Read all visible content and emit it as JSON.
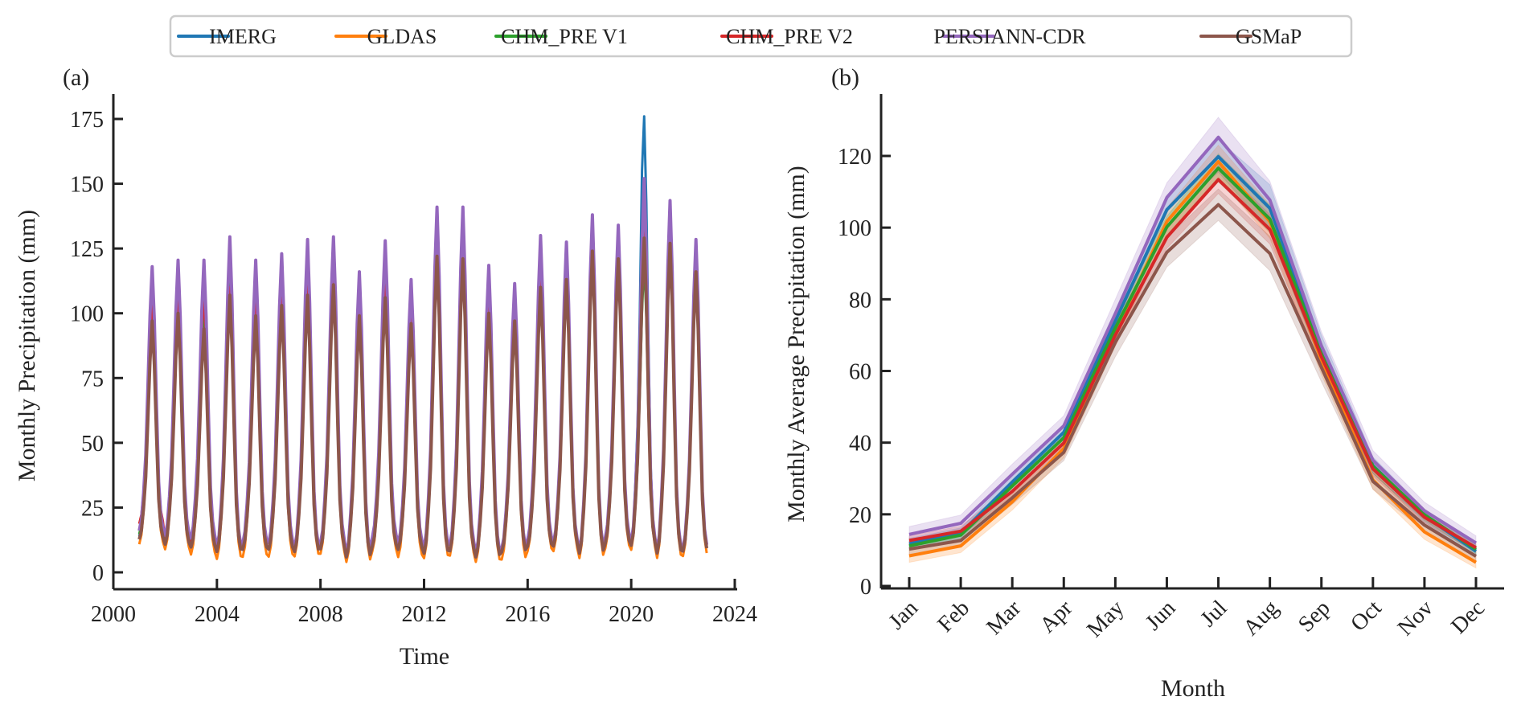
{
  "legend": {
    "entries": [
      {
        "label": "IMERG",
        "color": "#1f77b4"
      },
      {
        "label": "GLDAS",
        "color": "#ff7f0e"
      },
      {
        "label": "CHM_PRE V1",
        "color": "#2ca02c"
      },
      {
        "label": "CHM_PRE V2",
        "color": "#d62728"
      },
      {
        "label": "PERSIANN-CDR",
        "color": "#9467bd"
      },
      {
        "label": "GSMaP",
        "color": "#8c564b"
      }
    ],
    "placement": "top-center"
  },
  "chart_data": [
    {
      "panel_label": "(a)",
      "type": "line",
      "title": "",
      "xlabel": "Time",
      "ylabel": "Monthly Precipitation (mm)",
      "xlim": [
        2000,
        2024
      ],
      "ylim": [
        -5,
        185
      ],
      "xticks": [
        2000,
        2004,
        2008,
        2012,
        2016,
        2020,
        2024
      ],
      "xtick_labels": [
        "2000",
        "2004",
        "2008",
        "2012",
        "2016",
        "2020",
        "2024"
      ],
      "yticks": [
        0,
        25,
        50,
        75,
        100,
        125,
        150,
        175
      ],
      "ytick_labels": [
        "0",
        "25",
        "50",
        "75",
        "100",
        "125",
        "150",
        "175"
      ],
      "grid": false,
      "note": "Monthly series 2001-2022; values summarized per year as peak (summer maximum) and trough (winter minimum)",
      "years": [
        2001,
        2002,
        2003,
        2004,
        2005,
        2006,
        2007,
        2008,
        2009,
        2010,
        2011,
        2012,
        2013,
        2014,
        2015,
        2016,
        2017,
        2018,
        2019,
        2020,
        2021,
        2022
      ],
      "series": [
        {
          "name": "IMERG",
          "color": "#1f77b4",
          "annual_peak": [
            108,
            110,
            108,
            118,
            110,
            113,
            118,
            120,
            107,
            117,
            104,
            131,
            131,
            109,
            103,
            120,
            120,
            131,
            128,
            176,
            135,
            122
          ],
          "annual_trough": [
            12,
            9,
            8,
            6,
            7,
            7,
            6,
            7,
            4,
            8,
            7,
            5,
            6,
            4,
            6,
            8,
            8,
            5,
            9,
            8,
            5,
            6
          ]
        },
        {
          "name": "GLDAS",
          "color": "#ff7f0e",
          "annual_peak": [
            100,
            103,
            100,
            112,
            104,
            107,
            112,
            114,
            102,
            111,
            99,
            126,
            126,
            104,
            99,
            116,
            115,
            128,
            124,
            140,
            131,
            119
          ],
          "annual_trough": [
            9,
            7,
            5,
            3,
            4,
            4,
            4,
            5,
            2,
            6,
            4,
            3,
            4,
            2,
            3,
            6,
            6,
            3,
            7,
            6,
            3,
            4
          ]
        },
        {
          "name": "CHM_PRE V1",
          "color": "#2ca02c",
          "annual_peak": [
            102,
            104,
            102,
            112,
            104,
            106,
            111,
            114,
            102,
            110,
            99,
            125,
            125,
            104,
            99,
            114,
            116,
            127,
            123,
            121,
            130,
            119
          ],
          "annual_trough": [
            13,
            10,
            9,
            6,
            7,
            7,
            6,
            8,
            4,
            9,
            7,
            5,
            6,
            4,
            6,
            9,
            8,
            5,
            10,
            8,
            5,
            6
          ]
        },
        {
          "name": "CHM_PRE V2",
          "color": "#d62728",
          "annual_peak": [
            104,
            108,
            109,
            110,
            106,
            107,
            112,
            113,
            103,
            112,
            101,
            124,
            124,
            106,
            98,
            116,
            115,
            126,
            124,
            132,
            130,
            120
          ],
          "annual_trough": [
            17,
            10,
            9,
            6,
            7,
            7,
            6,
            8,
            4,
            9,
            7,
            6,
            6,
            4,
            6,
            9,
            8,
            5,
            10,
            8,
            5,
            6
          ]
        },
        {
          "name": "PERSIANN-CDR",
          "color": "#9467bd",
          "annual_peak": [
            118,
            120.5,
            120.5,
            129.5,
            120.5,
            123,
            128.5,
            129.5,
            116,
            128,
            113,
            141,
            141,
            118.5,
            111.5,
            130,
            127.5,
            138,
            134,
            152,
            143.5,
            128.5
          ],
          "annual_trough": [
            14,
            12,
            11,
            7,
            9,
            9,
            7,
            9,
            5,
            11,
            9,
            7,
            8,
            5,
            7,
            10,
            9,
            6,
            11,
            9,
            6,
            7
          ]
        },
        {
          "name": "GSMaP",
          "color": "#8c564b",
          "annual_peak": [
            97,
            100,
            94,
            107,
            99,
            103,
            107,
            111,
            99,
            106,
            96,
            122,
            121,
            100,
            97,
            110,
            113,
            124,
            121,
            129,
            127,
            116
          ],
          "annual_trough": [
            11,
            9,
            8,
            6,
            7,
            7,
            6,
            7,
            4,
            8,
            7,
            5,
            6,
            4,
            6,
            8,
            8,
            5,
            9,
            8,
            5,
            6
          ]
        }
      ]
    },
    {
      "panel_label": "(b)",
      "type": "line",
      "title": "",
      "xlabel": "Month",
      "ylabel": "Monthly Average Precipitation (mm)",
      "categories": [
        "Jan",
        "Feb",
        "Mar",
        "Apr",
        "May",
        "Jun",
        "Jul",
        "Aug",
        "Sep",
        "Oct",
        "Nov",
        "Dec"
      ],
      "ylim": [
        -1,
        136
      ],
      "yticks": [
        0,
        20,
        40,
        60,
        80,
        100,
        120
      ],
      "ytick_labels": [
        "0",
        "20",
        "40",
        "60",
        "80",
        "100",
        "120"
      ],
      "grid": false,
      "shaded_band": "uncertainty band around each series",
      "series": [
        {
          "name": "IMERG",
          "color": "#1f77b4",
          "values": [
            11.8,
            14.7,
            29.0,
            42.9,
            74,
            105.0,
            119.8,
            105.4,
            66,
            33.6,
            19.6,
            9.7
          ],
          "band": [
            [
              10.5,
              13.3
            ],
            [
              13.3,
              16.2
            ],
            [
              27.3,
              30.8
            ],
            [
              41.0,
              45.0
            ],
            [
              71,
              77
            ],
            [
              102.0,
              109.0
            ],
            [
              115.5,
              124.5
            ],
            [
              99.0,
              112.0
            ],
            [
              62,
              70
            ],
            [
              31.5,
              36.0
            ],
            [
              17.8,
              21.4
            ],
            [
              8.3,
              11.2
            ]
          ]
        },
        {
          "name": "GLDAS",
          "color": "#ff7f0e",
          "values": [
            8.4,
            11.2,
            23.5,
            38.4,
            71,
            101.7,
            118.4,
            101.7,
            63,
            29.6,
            15.1,
            6.6
          ],
          "band": [
            [
              6.6,
              10.2
            ],
            [
              9.3,
              13.0
            ],
            [
              21.2,
              25.8
            ],
            [
              35.8,
              41.0
            ],
            [
              67,
              75
            ],
            [
              98.0,
              105.5
            ],
            [
              114.0,
              123.0
            ],
            [
              97.0,
              106.5
            ],
            [
              59,
              67
            ],
            [
              27.0,
              32.2
            ],
            [
              13.0,
              17.2
            ],
            [
              5.0,
              8.3
            ]
          ]
        },
        {
          "name": "CHM_PRE V1",
          "color": "#2ca02c",
          "values": [
            11.2,
            14.2,
            27.9,
            41.4,
            72,
            100.2,
            116.6,
            102.4,
            65,
            33.4,
            19.9,
            10.2
          ],
          "band": [
            [
              10.0,
              12.5
            ],
            [
              13.0,
              15.5
            ],
            [
              26.3,
              29.6
            ],
            [
              39.6,
              43.3
            ],
            [
              69,
              75
            ],
            [
              97.3,
              103.2
            ],
            [
              112.8,
              120.6
            ],
            [
              98.6,
              106.3
            ],
            [
              62,
              68
            ],
            [
              31.5,
              35.3
            ],
            [
              18.3,
              21.5
            ],
            [
              9.0,
              11.5
            ]
          ]
        },
        {
          "name": "CHM_PRE V2",
          "color": "#d62728",
          "values": [
            12.7,
            15.3,
            26.4,
            39.9,
            70,
            97.3,
            113.4,
            99.5,
            64,
            32.7,
            19.2,
            10.7
          ],
          "band": [
            [
              11.4,
              14.0
            ],
            [
              14.0,
              16.7
            ],
            [
              24.8,
              28.1
            ],
            [
              38.0,
              41.9
            ],
            [
              67,
              73
            ],
            [
              94.2,
              100.5
            ],
            [
              109.5,
              117.5
            ],
            [
              95.4,
              103.7
            ],
            [
              61,
              67
            ],
            [
              30.7,
              34.7
            ],
            [
              17.6,
              20.8
            ],
            [
              9.5,
              12.0
            ]
          ]
        },
        {
          "name": "PERSIANN-CDR",
          "color": "#9467bd",
          "values": [
            14.4,
            17.5,
            31.2,
            44.7,
            76,
            108.4,
            125.2,
            107.7,
            67,
            35.1,
            21.0,
            12.0
          ],
          "band": [
            [
              12.3,
              16.6
            ],
            [
              15.4,
              19.8
            ],
            [
              28.6,
              34.0
            ],
            [
              42.0,
              47.5
            ],
            [
              72,
              80
            ],
            [
              104.5,
              112.5
            ],
            [
              120.0,
              130.8
            ],
            [
              102.5,
              113.0
            ],
            [
              63,
              71
            ],
            [
              32.6,
              37.8
            ],
            [
              18.8,
              23.4
            ],
            [
              10.2,
              14.0
            ]
          ]
        },
        {
          "name": "GSMaP",
          "color": "#8c564b",
          "values": [
            10.3,
            12.7,
            24.6,
            37.3,
            68,
            93.1,
            106.4,
            92.8,
            61,
            29.2,
            17.0,
            8.3
          ],
          "band": [
            [
              8.8,
              11.8
            ],
            [
              11.2,
              14.3
            ],
            [
              22.8,
              26.5
            ],
            [
              35.0,
              39.7
            ],
            [
              64,
              72
            ],
            [
              89.0,
              97.2
            ],
            [
              102.0,
              110.8
            ],
            [
              88.0,
              97.6
            ],
            [
              57,
              65
            ],
            [
              27.0,
              31.5
            ],
            [
              15.2,
              18.8
            ],
            [
              7.0,
              9.7
            ]
          ]
        }
      ]
    }
  ]
}
